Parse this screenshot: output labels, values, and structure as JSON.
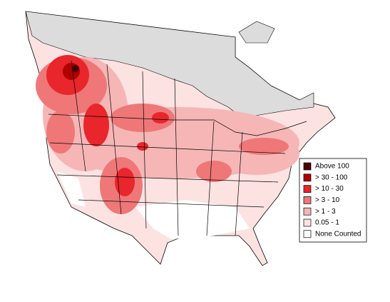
{
  "legend": {
    "items": [
      {
        "label": "Above 100",
        "color": "#4a0000"
      },
      {
        "label": "> 30 - 100",
        "color": "#b00000"
      },
      {
        "label": "> 10 - 30",
        "color": "#e8262b"
      },
      {
        "label": "> 3 - 10",
        "color": "#ef7777"
      },
      {
        "label": "> 1 - 3",
        "color": "#f6b6b6"
      },
      {
        "label": "0.05 - 1",
        "color": "#fde2e2"
      },
      {
        "label": "None Counted",
        "color": "#ffffff"
      }
    ]
  }
}
